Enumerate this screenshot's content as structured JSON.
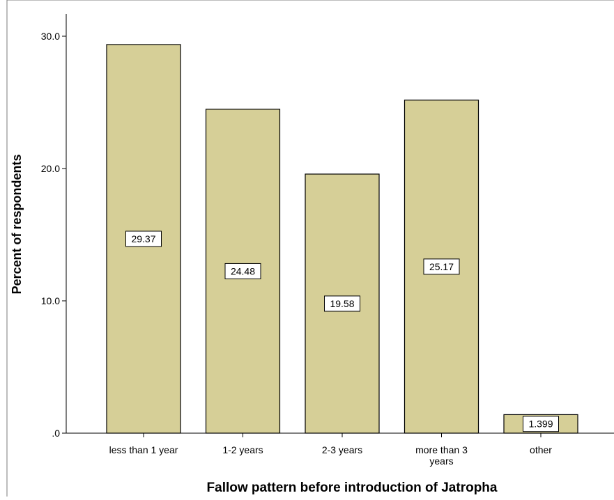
{
  "chart_data": {
    "type": "bar",
    "title": "",
    "xlabel": "Fallow pattern before introduction of Jatropha",
    "ylabel": "Percent of respondents",
    "categories": [
      "less than 1 year",
      "1-2 years",
      "2-3 years",
      "more than 3 years",
      "other"
    ],
    "values": [
      29.37,
      24.48,
      19.58,
      25.17,
      1.399
    ],
    "data_labels": [
      "29.37",
      "24.48",
      "19.58",
      "25.17",
      "1.399"
    ],
    "ylim": [
      0,
      30.0
    ],
    "yticks": [
      0,
      10,
      20,
      30
    ],
    "ytick_labels": [
      ".0",
      "10.0",
      "20.0",
      "30.0"
    ],
    "grid": false,
    "bar_color": "#d6cf97",
    "bar_edge_color": "#000000"
  }
}
